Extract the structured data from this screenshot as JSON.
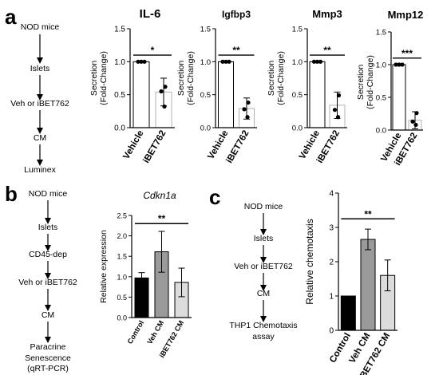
{
  "panels": {
    "a": {
      "letter": "a",
      "flow": [
        "NOD  mice",
        "Islets",
        "Veh or iBET762",
        "CM",
        "Luminex"
      ]
    },
    "b": {
      "letter": "b",
      "flow": [
        "NOD  mice",
        "Islets",
        "CD45-dep",
        "Veh or iBET762",
        "CM",
        "Paracrine",
        "Senescence",
        "(qRT-PCR)"
      ]
    },
    "c": {
      "letter": "c",
      "flow": [
        "NOD  mice",
        "Islets",
        "Veh or iBET762",
        "CM",
        "THP1 Chemotaxis",
        "assay"
      ]
    }
  },
  "chart_data": [
    {
      "id": "il6",
      "type": "bar",
      "title": "IL-6",
      "ylabel": [
        "Secretion",
        "(Fold-Change)"
      ],
      "categories": [
        "Vehicle",
        "iBET762"
      ],
      "values": [
        1.0,
        0.54
      ],
      "errors": [
        0,
        0.21
      ],
      "points": [
        [
          1.0,
          1.0,
          1.0
        ],
        [
          0.62,
          0.55,
          0.32
        ]
      ],
      "colors": [
        "#ffffff",
        "#ffffff"
      ],
      "ylim": [
        0,
        1.5
      ],
      "yticks": [
        "0.0",
        "0.5",
        "1.0",
        "1.5"
      ],
      "significance": "*"
    },
    {
      "id": "igfbp3",
      "type": "bar",
      "title": "Igfbp3",
      "ylabel": [
        "Secretion",
        "(Fold-Change)"
      ],
      "categories": [
        "Vehicle",
        "iBET762"
      ],
      "values": [
        1.0,
        0.29
      ],
      "errors": [
        0,
        0.16
      ],
      "points": [
        [
          1.0,
          1.0,
          1.0
        ],
        [
          0.38,
          0.28,
          0.16
        ]
      ],
      "colors": [
        "#ffffff",
        "#ffffff"
      ],
      "ylim": [
        0,
        1.5
      ],
      "yticks": [
        "0.0",
        "0.5",
        "1.0",
        "1.5"
      ],
      "significance": "**"
    },
    {
      "id": "mmp3",
      "type": "bar",
      "title": "Mmp3",
      "ylabel": [
        "Secretion",
        "(Fold-Change)"
      ],
      "categories": [
        "Vehicle",
        "iBET762"
      ],
      "values": [
        1.0,
        0.34
      ],
      "errors": [
        0,
        0.2
      ],
      "points": [
        [
          1.0,
          1.0,
          1.0
        ],
        [
          0.49,
          0.27,
          0.16
        ]
      ],
      "colors": [
        "#ffffff",
        "#ffffff"
      ],
      "ylim": [
        0,
        1.5
      ],
      "yticks": [
        "0.0",
        "0.5",
        "1.0",
        "1.5"
      ],
      "significance": "**"
    },
    {
      "id": "mmp12",
      "type": "bar",
      "title": "Mmp12",
      "ylabel": [
        "Secretion",
        "(Fold-Change)"
      ],
      "categories": [
        "Vehicle",
        "iBET762"
      ],
      "values": [
        1.0,
        0.15
      ],
      "errors": [
        0,
        0.13
      ],
      "points": [
        [
          1.0,
          1.0,
          1.0
        ],
        [
          0.26,
          0.13,
          0.08
        ]
      ],
      "colors": [
        "#ffffff",
        "#ffffff"
      ],
      "ylim": [
        0,
        1.5
      ],
      "yticks": [
        "0.0",
        "0.5",
        "1.0",
        "1.5"
      ],
      "significance": "***"
    },
    {
      "id": "cdkn1a",
      "type": "bar",
      "title": "Cdkn1a",
      "ylabel": [
        "Relative expression"
      ],
      "categories": [
        "Control",
        "Veh CM",
        "iBET762 CM"
      ],
      "values": [
        0.97,
        1.61,
        0.86
      ],
      "errors": [
        0.13,
        0.5,
        0.35
      ],
      "colors": [
        "#000000",
        "#9a9a9a",
        "#dcdcdc"
      ],
      "ylim": [
        0,
        2.5
      ],
      "yticks": [
        "0.0",
        "0.5",
        "1.0",
        "1.5",
        "2.0",
        "2.5"
      ],
      "significance": "**"
    },
    {
      "id": "chemotaxis",
      "type": "bar",
      "title": "",
      "ylabel": [
        "Relative chemotaxis"
      ],
      "categories": [
        "Control",
        "Veh CM",
        "iBET762 CM"
      ],
      "values": [
        1.0,
        2.65,
        1.6
      ],
      "errors": [
        0,
        0.3,
        0.45
      ],
      "colors": [
        "#000000",
        "#9a9a9a",
        "#dcdcdc"
      ],
      "ylim": [
        0,
        4
      ],
      "yticks": [
        "0",
        "1",
        "2",
        "3",
        "4"
      ],
      "significance": "**"
    }
  ]
}
